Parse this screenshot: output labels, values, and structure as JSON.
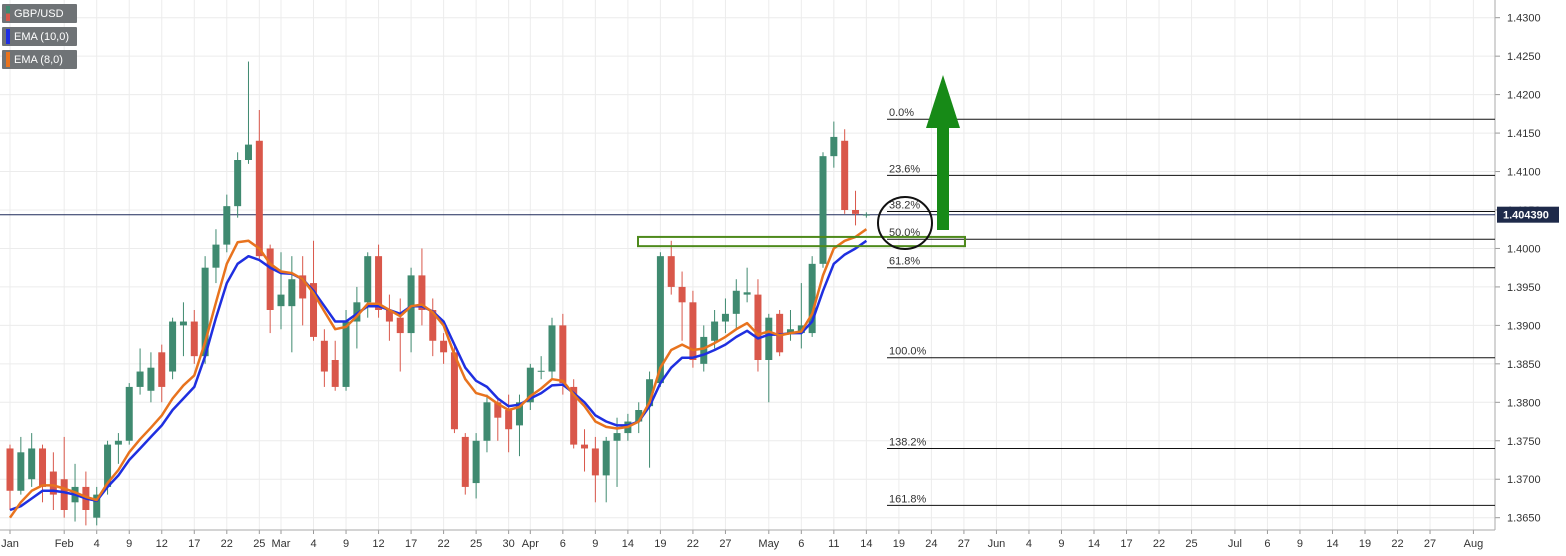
{
  "chart_data": {
    "type": "candlestick",
    "categories": [
      "Jan",
      null,
      null,
      null,
      null,
      "Feb",
      null,
      null,
      "4",
      null,
      null,
      "9",
      null,
      null,
      "12",
      null,
      null,
      "17",
      null,
      null,
      "22",
      null,
      null,
      "25",
      null,
      "Mar",
      null,
      null,
      "4",
      null,
      null,
      "9",
      null,
      null,
      "12",
      null,
      null,
      "17",
      null,
      null,
      "22",
      null,
      null,
      "25",
      null,
      null,
      "30",
      null,
      "Apr",
      null,
      null,
      "6",
      null,
      null,
      "9",
      null,
      null,
      "14",
      null,
      null,
      "19",
      null,
      null,
      "22",
      null,
      null,
      "27",
      null,
      null,
      null,
      "May",
      null,
      null,
      "6",
      null,
      null,
      "11",
      null,
      null,
      "14",
      null,
      null,
      "19",
      null,
      null,
      "24",
      null,
      null,
      "27",
      null,
      null,
      "Jun",
      null,
      null,
      "4",
      null,
      null,
      "9",
      null,
      null,
      "14",
      null,
      null,
      "17",
      null,
      null,
      "22",
      null,
      null,
      "25",
      null,
      null,
      null,
      "Jul",
      null,
      null,
      "6",
      null,
      null,
      "9",
      null,
      null,
      "14",
      null,
      null,
      "19",
      null,
      null,
      "22",
      null,
      null,
      "27",
      null,
      null,
      null,
      "Aug"
    ],
    "series": [
      {
        "name": "GBP/USD",
        "type": "candlestick",
        "up_color": "#3f8a70",
        "down_color": "#d9574a",
        "open": [
          1.374,
          1.3685,
          1.37,
          1.374,
          1.371,
          1.37,
          1.367,
          1.369,
          1.365,
          1.369,
          1.3745,
          1.375,
          1.382,
          1.3815,
          1.3865,
          1.384,
          1.39,
          1.3905,
          1.386,
          1.3975,
          1.4005,
          1.4055,
          1.4115,
          1.414,
          1.4,
          1.3925,
          1.3925,
          1.3965,
          1.3955,
          1.388,
          1.3855,
          1.382,
          1.3905,
          1.393,
          1.399,
          1.392,
          1.391,
          1.389,
          1.3965,
          1.392,
          1.388,
          1.3865,
          1.3755,
          1.3695,
          1.375,
          1.38,
          1.379,
          1.377,
          1.38,
          1.384,
          1.384,
          1.39,
          1.382,
          1.3745,
          1.374,
          1.3705,
          1.375,
          1.376,
          1.3775,
          1.3795,
          1.3825,
          1.399,
          1.395,
          1.393,
          1.385,
          1.388,
          1.3905,
          1.3915,
          1.394,
          1.394,
          1.3855,
          1.3915,
          1.389,
          1.389,
          1.389,
          1.398,
          1.412,
          1.414,
          1.405,
          1.4044,
          null,
          null,
          null,
          null,
          null,
          null,
          null,
          null,
          null,
          null,
          null,
          null,
          null,
          null,
          null,
          null,
          null,
          null,
          null,
          null,
          null,
          null,
          null,
          null,
          null,
          null,
          null,
          null,
          null,
          null,
          null,
          null,
          null,
          null,
          null,
          null,
          null,
          null,
          null,
          null,
          null,
          null,
          null,
          null,
          null,
          null,
          null,
          null,
          null,
          null,
          null,
          null,
          null,
          null,
          null,
          null
        ],
        "high": [
          1.3745,
          1.3755,
          1.376,
          1.3745,
          1.3735,
          1.3755,
          1.372,
          1.371,
          1.369,
          1.375,
          1.376,
          1.3825,
          1.387,
          1.3865,
          1.3875,
          1.391,
          1.393,
          1.392,
          1.399,
          1.4025,
          1.407,
          1.4125,
          1.4243,
          1.418,
          1.4005,
          1.3995,
          1.399,
          1.399,
          1.401,
          1.3895,
          1.388,
          1.392,
          1.395,
          1.3995,
          1.4005,
          1.394,
          1.3935,
          1.3975,
          1.4,
          1.3935,
          1.389,
          1.3875,
          1.376,
          1.376,
          1.381,
          1.3805,
          1.381,
          1.381,
          1.385,
          1.386,
          1.391,
          1.3915,
          1.383,
          1.3765,
          1.3755,
          1.3755,
          1.378,
          1.3785,
          1.38,
          1.384,
          1.3995,
          1.401,
          1.397,
          1.3945,
          1.39,
          1.392,
          1.3935,
          1.396,
          1.3975,
          1.396,
          1.3915,
          1.392,
          1.392,
          1.3955,
          1.399,
          1.4125,
          1.4165,
          1.4155,
          1.4075,
          1.4047,
          null,
          null,
          null,
          null,
          null,
          null,
          null,
          null,
          null,
          null,
          null,
          null,
          null,
          null,
          null,
          null,
          null,
          null,
          null,
          null,
          null,
          null,
          null,
          null,
          null,
          null,
          null,
          null,
          null,
          null,
          null,
          null,
          null,
          null,
          null,
          null,
          null,
          null,
          null,
          null,
          null,
          null,
          null,
          null,
          null,
          null,
          null,
          null,
          null,
          null,
          null,
          null,
          null,
          null,
          null,
          null
        ],
        "low": [
          1.366,
          1.368,
          1.369,
          1.367,
          1.366,
          1.365,
          1.3645,
          1.364,
          1.364,
          1.368,
          1.372,
          1.3745,
          1.381,
          1.38,
          1.38,
          1.383,
          1.386,
          1.385,
          1.385,
          1.3955,
          1.3995,
          1.404,
          1.411,
          1.3985,
          1.389,
          1.3895,
          1.3865,
          1.39,
          1.388,
          1.382,
          1.3815,
          1.3815,
          1.387,
          1.391,
          1.391,
          1.388,
          1.384,
          1.3865,
          1.39,
          1.386,
          1.385,
          1.376,
          1.368,
          1.3675,
          1.3735,
          1.375,
          1.3735,
          1.373,
          1.379,
          1.383,
          1.383,
          1.381,
          1.374,
          1.371,
          1.367,
          1.367,
          1.369,
          1.375,
          1.376,
          1.3715,
          1.382,
          1.394,
          1.388,
          1.3845,
          1.384,
          1.387,
          1.389,
          1.3895,
          1.393,
          1.384,
          1.38,
          1.386,
          1.388,
          1.387,
          1.3885,
          1.3975,
          1.4105,
          1.4045,
          1.403,
          1.404,
          null,
          null,
          null,
          null,
          null,
          null,
          null,
          null,
          null,
          null,
          null,
          null,
          null,
          null,
          null,
          null,
          null,
          null,
          null,
          null,
          null,
          null,
          null,
          null,
          null,
          null,
          null,
          null,
          null,
          null,
          null,
          null,
          null,
          null,
          null,
          null,
          null,
          null,
          null,
          null,
          null,
          null,
          null,
          null,
          null,
          null,
          null,
          null,
          null,
          null,
          null,
          null,
          null,
          null,
          null,
          null
        ],
        "close": [
          1.3685,
          1.3735,
          1.374,
          1.369,
          1.368,
          1.366,
          1.369,
          1.366,
          1.368,
          1.3745,
          1.375,
          1.382,
          1.384,
          1.3845,
          1.382,
          1.3905,
          1.3905,
          1.386,
          1.3975,
          1.4005,
          1.4055,
          1.4115,
          1.4135,
          1.399,
          1.392,
          1.394,
          1.396,
          1.3935,
          1.3885,
          1.384,
          1.382,
          1.3905,
          1.393,
          1.399,
          1.392,
          1.3905,
          1.389,
          1.3965,
          1.392,
          1.388,
          1.3865,
          1.3765,
          1.369,
          1.375,
          1.38,
          1.378,
          1.3765,
          1.38,
          1.3845,
          1.3841,
          1.39,
          1.3825,
          1.3745,
          1.374,
          1.3705,
          1.375,
          1.376,
          1.3775,
          1.379,
          1.383,
          1.399,
          1.395,
          1.393,
          1.3855,
          1.3885,
          1.3905,
          1.3915,
          1.3945,
          1.3943,
          1.3855,
          1.391,
          1.3865,
          1.3895,
          1.39,
          1.398,
          1.412,
          1.4145,
          1.405,
          1.4045,
          1.4044,
          null,
          null,
          null,
          null,
          null,
          null,
          null,
          null,
          null,
          null,
          null,
          null,
          null,
          null,
          null,
          null,
          null,
          null,
          null,
          null,
          null,
          null,
          null,
          null,
          null,
          null,
          null,
          null,
          null,
          null,
          null,
          null,
          null,
          null,
          null,
          null,
          null,
          null,
          null,
          null,
          null,
          null,
          null,
          null,
          null,
          null,
          null,
          null,
          null,
          null,
          null,
          null,
          null,
          null,
          null,
          null
        ]
      },
      {
        "name": "EMA (10,0)",
        "type": "line",
        "color": "#1f2fe0",
        "values": [
          1.366,
          1.3665,
          1.3675,
          1.3685,
          1.3685,
          1.3683,
          1.368,
          1.3675,
          1.3672,
          1.369,
          1.3705,
          1.3725,
          1.374,
          1.3755,
          1.377,
          1.379,
          1.3805,
          1.382,
          1.386,
          1.391,
          1.3955,
          1.398,
          1.399,
          1.3985,
          1.3975,
          1.3968,
          1.3967,
          1.396,
          1.3945,
          1.3925,
          1.3905,
          1.3905,
          1.3915,
          1.3925,
          1.3925,
          1.392,
          1.3915,
          1.3925,
          1.3925,
          1.3918,
          1.3905,
          1.3875,
          1.3845,
          1.3828,
          1.382,
          1.3805,
          1.3795,
          1.3797,
          1.3805,
          1.3812,
          1.3822,
          1.3823,
          1.3812,
          1.38,
          1.3783,
          1.3775,
          1.377,
          1.377,
          1.3775,
          1.3795,
          1.3825,
          1.3845,
          1.3858,
          1.3858,
          1.3862,
          1.3868,
          1.3875,
          1.3885,
          1.3893,
          1.3883,
          1.3888,
          1.3888,
          1.389,
          1.389,
          1.3905,
          1.3945,
          1.398,
          1.3992,
          1.4,
          1.401,
          null,
          null,
          null,
          null,
          null,
          null,
          null,
          null,
          null,
          null,
          null,
          null,
          null,
          null,
          null,
          null,
          null,
          null,
          null,
          null,
          null,
          null,
          null,
          null,
          null,
          null,
          null,
          null,
          null,
          null,
          null,
          null,
          null,
          null,
          null,
          null,
          null,
          null,
          null,
          null,
          null,
          null,
          null,
          null,
          null,
          null,
          null,
          null,
          null,
          null,
          null,
          null,
          null,
          null,
          null,
          null
        ]
      },
      {
        "name": "EMA (8,0)",
        "type": "line",
        "color": "#e8731e",
        "values": [
          1.365,
          1.367,
          1.3685,
          1.3692,
          1.3692,
          1.3688,
          1.3683,
          1.3677,
          1.3673,
          1.3695,
          1.3712,
          1.3735,
          1.3752,
          1.3767,
          1.3783,
          1.3805,
          1.3822,
          1.3835,
          1.3878,
          1.393,
          1.398,
          1.4008,
          1.401,
          1.4,
          1.398,
          1.397,
          1.3968,
          1.396,
          1.3942,
          1.3918,
          1.3895,
          1.3898,
          1.3912,
          1.3928,
          1.3928,
          1.392,
          1.3912,
          1.3925,
          1.3927,
          1.3917,
          1.39,
          1.3862,
          1.383,
          1.3812,
          1.3808,
          1.3798,
          1.379,
          1.3794,
          1.3808,
          1.3818,
          1.383,
          1.3828,
          1.381,
          1.3795,
          1.3775,
          1.3768,
          1.3766,
          1.3768,
          1.3775,
          1.38,
          1.3845,
          1.3868,
          1.3875,
          1.3868,
          1.387,
          1.3877,
          1.3885,
          1.3895,
          1.3903,
          1.3888,
          1.3892,
          1.3887,
          1.389,
          1.3892,
          1.3915,
          1.3965,
          1.4,
          1.401,
          1.4015,
          1.4025,
          null,
          null,
          null,
          null,
          null,
          null,
          null,
          null,
          null,
          null,
          null,
          null,
          null,
          null,
          null,
          null,
          null,
          null,
          null,
          null,
          null,
          null,
          null,
          null,
          null,
          null,
          null,
          null,
          null,
          null,
          null,
          null,
          null,
          null,
          null,
          null,
          null,
          null,
          null,
          null,
          null,
          null,
          null,
          null,
          null,
          null,
          null,
          null,
          null,
          null,
          null,
          null,
          null,
          null,
          null,
          null
        ]
      }
    ],
    "ylim": [
      1.3634,
      1.4323
    ],
    "yticks": [
      {
        "value": 1.365,
        "label": "1.3650"
      },
      {
        "value": 1.37,
        "label": "1.3700"
      },
      {
        "value": 1.375,
        "label": "1.3750"
      },
      {
        "value": 1.38,
        "label": "1.3800"
      },
      {
        "value": 1.385,
        "label": "1.3850"
      },
      {
        "value": 1.39,
        "label": "1.3900"
      },
      {
        "value": 1.395,
        "label": "1.3950"
      },
      {
        "value": 1.4,
        "label": "1.4000"
      },
      {
        "value": 1.405,
        "label": "1.4050"
      },
      {
        "value": 1.41,
        "label": "1.4100"
      },
      {
        "value": 1.415,
        "label": "1.4150"
      },
      {
        "value": 1.42,
        "label": "1.4200"
      },
      {
        "value": 1.425,
        "label": "1.4250"
      },
      {
        "value": 1.43,
        "label": "1.4300"
      }
    ],
    "grid": true,
    "last_price": {
      "value": 1.40439,
      "label": "1.404390"
    },
    "fibonacci": [
      {
        "value": 1.4168,
        "label": "0.0%"
      },
      {
        "value": 1.4095,
        "label": "23.6%"
      },
      {
        "value": 1.4048,
        "label": "38.2%"
      },
      {
        "value": 1.4012,
        "label": "50.0%"
      },
      {
        "value": 1.3975,
        "label": "61.8%"
      },
      {
        "value": 1.3858,
        "label": "100.0%"
      },
      {
        "value": 1.374,
        "label": "138.2%"
      },
      {
        "value": 1.3666,
        "label": "161.8%"
      }
    ],
    "zone": [
      1.4003,
      1.4015
    ]
  }
}
